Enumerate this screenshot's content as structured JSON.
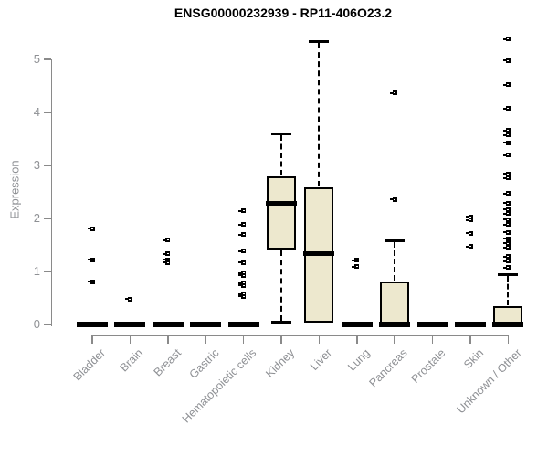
{
  "chart_data": {
    "type": "boxplot",
    "title": "ENSG00000232939 - RP11-406O23.2",
    "ylabel": "Expression",
    "xlabel": "",
    "yticks": [
      0,
      1,
      2,
      3,
      4,
      5
    ],
    "ylim": [
      0,
      5.45
    ],
    "grid": false,
    "legend": "none",
    "categories": [
      "Bladder",
      "Brain",
      "Breast",
      "Gastric",
      "Hematopoietic cells",
      "Kidney",
      "Liver",
      "Lung",
      "Pancreas",
      "Prostate",
      "Skin",
      "Unknown / Other"
    ],
    "boxes": [
      {
        "category": "Bladder",
        "q1": 0,
        "median": 0,
        "q3": 0,
        "whisker_low": 0,
        "whisker_high": 0,
        "outliers": [
          1.81,
          1.22,
          0.81
        ]
      },
      {
        "category": "Brain",
        "q1": 0,
        "median": 0,
        "q3": 0,
        "whisker_low": 0,
        "whisker_high": 0,
        "outliers": [
          0.48
        ]
      },
      {
        "category": "Breast",
        "q1": 0,
        "median": 0,
        "q3": 0,
        "whisker_low": 0,
        "whisker_high": 0,
        "outliers": [
          1.59,
          1.33,
          1.22,
          1.17
        ]
      },
      {
        "category": "Gastric",
        "q1": 0,
        "median": 0,
        "q3": 0,
        "whisker_low": 0,
        "whisker_high": 0,
        "outliers": []
      },
      {
        "category": "Hematopoietic cells",
        "q1": 0,
        "median": 0,
        "q3": 0,
        "whisker_low": 0,
        "whisker_high": 0,
        "outliers": [
          2.14,
          1.88,
          1.69,
          1.38,
          1.17,
          0.97,
          0.93,
          0.78,
          0.74,
          0.57,
          0.53
        ]
      },
      {
        "category": "Kidney",
        "q1": 1.41,
        "median": 2.28,
        "q3": 2.79,
        "whisker_low": 0.03,
        "whisker_high": 3.6,
        "outliers": []
      },
      {
        "category": "Liver",
        "q1": 0.03,
        "median": 1.33,
        "q3": 2.59,
        "whisker_low": 0.03,
        "whisker_high": 5.34,
        "outliers": []
      },
      {
        "category": "Lung",
        "q1": 0,
        "median": 0,
        "q3": 0,
        "whisker_low": 0,
        "whisker_high": 0,
        "outliers": [
          1.21,
          1.09
        ]
      },
      {
        "category": "Pancreas",
        "q1": 0,
        "median": 0,
        "q3": 0.81,
        "whisker_low": 0,
        "whisker_high": 1.59,
        "outliers": [
          2.36,
          4.37
        ]
      },
      {
        "category": "Prostate",
        "q1": 0,
        "median": 0,
        "q3": 0,
        "whisker_low": 0,
        "whisker_high": 0,
        "outliers": []
      },
      {
        "category": "Skin",
        "q1": 0,
        "median": 0,
        "q3": 0,
        "whisker_low": 0,
        "whisker_high": 0,
        "outliers": [
          2.03,
          1.97,
          1.72,
          1.47
        ]
      },
      {
        "category": "Unknown / Other",
        "q1": 0,
        "median": 0,
        "q3": 0.34,
        "whisker_low": 0,
        "whisker_high": 0.95,
        "outliers": [
          5.38,
          4.98,
          4.52,
          4.07,
          3.66,
          3.57,
          3.43,
          3.19,
          2.84,
          2.76,
          2.47,
          2.29,
          2.17,
          2.09,
          1.98,
          1.88,
          1.74,
          1.62,
          1.53,
          1.45,
          1.28,
          1.19,
          1.07
        ]
      }
    ],
    "colors": {
      "box_fill": "#EDE8CE",
      "box_border": "#000000",
      "median": "#000000",
      "whisker": "#000000",
      "outlier": "#000000",
      "axis": "#8a8a8a",
      "tick_label": "#8e9094",
      "title": "#000000"
    }
  }
}
